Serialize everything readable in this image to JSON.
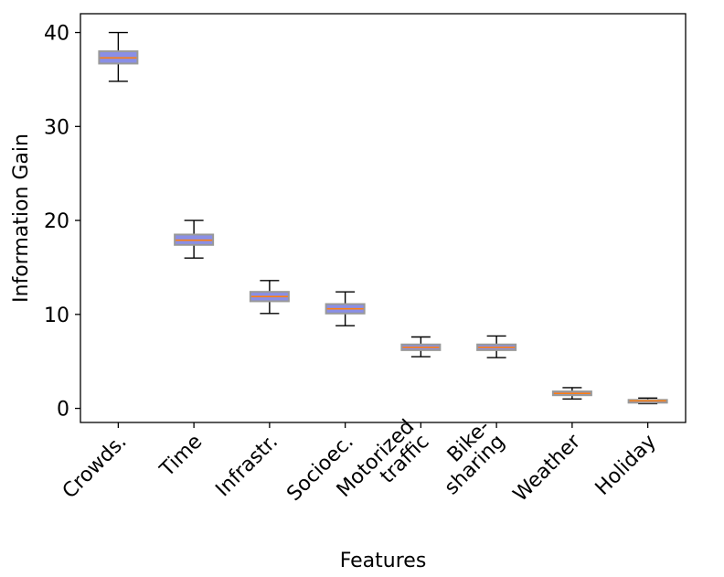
{
  "chart_data": {
    "type": "box",
    "title": "",
    "xlabel": "Features",
    "ylabel": "Information Gain",
    "ylim": [
      -1.5,
      42
    ],
    "yticks": [
      0,
      10,
      20,
      30,
      40
    ],
    "grid": false,
    "categories": [
      "Crowds.",
      "Time",
      "Infrastr.",
      "Socioec.",
      "Motorized\ntraffic",
      "Bike-\nsharing",
      "Weather",
      "Holiday"
    ],
    "boxes": [
      {
        "whisker_low": 34.8,
        "q1": 36.7,
        "median": 37.3,
        "q3": 38.0,
        "whisker_high": 40.0
      },
      {
        "whisker_low": 16.0,
        "q1": 17.4,
        "median": 17.9,
        "q3": 18.5,
        "whisker_high": 20.0
      },
      {
        "whisker_low": 10.1,
        "q1": 11.4,
        "median": 11.9,
        "q3": 12.4,
        "whisker_high": 13.6
      },
      {
        "whisker_low": 8.8,
        "q1": 10.1,
        "median": 10.6,
        "q3": 11.1,
        "whisker_high": 12.4
      },
      {
        "whisker_low": 5.5,
        "q1": 6.2,
        "median": 6.5,
        "q3": 6.8,
        "whisker_high": 7.6
      },
      {
        "whisker_low": 5.4,
        "q1": 6.2,
        "median": 6.5,
        "q3": 6.8,
        "whisker_high": 7.7
      },
      {
        "whisker_low": 1.0,
        "q1": 1.4,
        "median": 1.6,
        "q3": 1.8,
        "whisker_high": 2.2
      },
      {
        "whisker_low": 0.5,
        "q1": 0.7,
        "median": 0.8,
        "q3": 0.9,
        "whisker_high": 1.1
      }
    ],
    "colors": {
      "box_fill": "#8a8fe6",
      "box_edge": "#999999",
      "median": "#ff7f0e",
      "whisker": "#000000"
    }
  }
}
